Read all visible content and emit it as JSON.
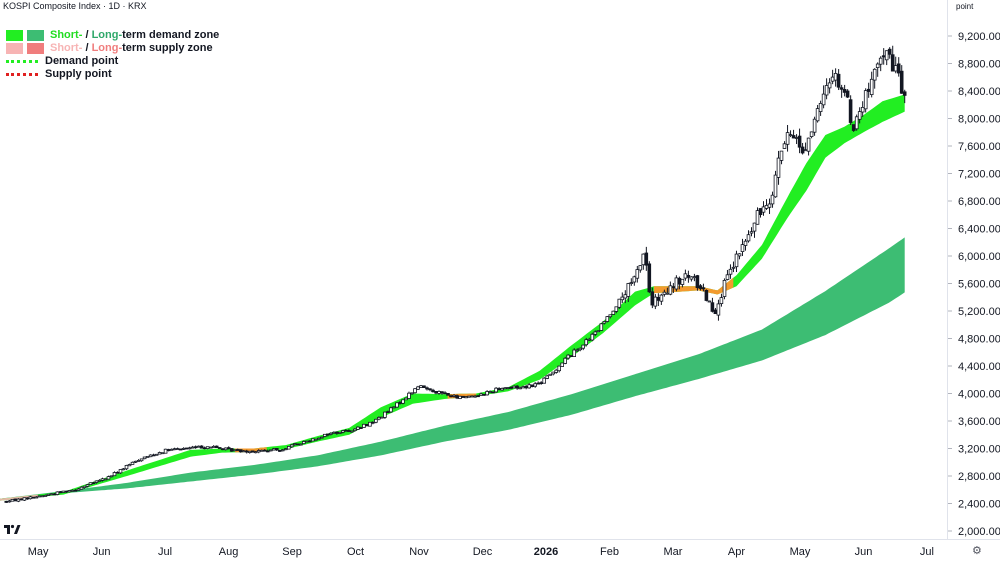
{
  "header": {
    "title": "KOSPI Composite Index · 1D · KRX",
    "unit": "point"
  },
  "legend": {
    "demand_zone": {
      "short": "Short-",
      "sep": " / ",
      "long": "Long-",
      "rest": "term demand zone"
    },
    "supply_zone": {
      "short": "Short-",
      "sep": " / ",
      "long": "Long-",
      "rest": "term supply zone"
    },
    "demand_point": "Demand point",
    "supply_point": "Supply point"
  },
  "colors": {
    "short_demand": "#22ee22",
    "long_demand": "#3dbd73",
    "short_supply": "#f7b4b4",
    "long_supply": "#f07d7d",
    "supply_segment": "#f39a2e",
    "candle_up": "#ffffff",
    "candle_down": "#131722",
    "axis_text": "#131722"
  },
  "icons": {
    "logo": "tradingview-logo-icon",
    "settings": "settings-icon"
  },
  "chart_data": {
    "type": "candlestick",
    "title": "KOSPI Composite Index · 1D · KRX",
    "ylabel": "point",
    "ylim": [
      1900,
      9500
    ],
    "yticks": [
      2000,
      2400,
      2800,
      3200,
      3600,
      4000,
      4400,
      4800,
      5200,
      5600,
      6000,
      6400,
      6800,
      7200,
      7600,
      8000,
      8400,
      8800,
      9200
    ],
    "ytick_labels": [
      "2,000.00",
      "2,400.00",
      "2,800.00",
      "3,200.00",
      "3,600.00",
      "4,000.00",
      "4,400.00",
      "4,800.00",
      "5,200.00",
      "5,600.00",
      "6,000.00",
      "6,400.00",
      "6,800.00",
      "7,200.00",
      "7,600.00",
      "8,000.00",
      "8,400.00",
      "8,800.00",
      "9,200.00"
    ],
    "xticks": [
      {
        "t": 0.6,
        "label": "May"
      },
      {
        "t": 1.6,
        "label": "Jun"
      },
      {
        "t": 2.6,
        "label": "Jul"
      },
      {
        "t": 3.6,
        "label": "Aug"
      },
      {
        "t": 4.6,
        "label": "Sep"
      },
      {
        "t": 5.6,
        "label": "Oct"
      },
      {
        "t": 6.6,
        "label": "Nov"
      },
      {
        "t": 7.6,
        "label": "Dec"
      },
      {
        "t": 8.6,
        "label": "2026"
      },
      {
        "t": 9.6,
        "label": "Feb"
      },
      {
        "t": 10.6,
        "label": "Mar"
      },
      {
        "t": 11.6,
        "label": "Apr"
      },
      {
        "t": 12.6,
        "label": "May"
      },
      {
        "t": 13.6,
        "label": "Jun"
      },
      {
        "t": 14.6,
        "label": "Jul"
      }
    ],
    "x_unit": "months from start of chart (May = 0.6)",
    "price_anchors": [
      [
        0.1,
        2430
      ],
      [
        0.7,
        2520
      ],
      [
        1.2,
        2610
      ],
      [
        1.7,
        2780
      ],
      [
        2.2,
        3050
      ],
      [
        2.6,
        3170
      ],
      [
        3.0,
        3210
      ],
      [
        3.3,
        3230
      ],
      [
        3.6,
        3180
      ],
      [
        4.0,
        3160
      ],
      [
        4.4,
        3180
      ],
      [
        4.8,
        3300
      ],
      [
        5.2,
        3420
      ],
      [
        5.6,
        3480
      ],
      [
        5.9,
        3600
      ],
      [
        6.2,
        3800
      ],
      [
        6.6,
        4110
      ],
      [
        6.9,
        4020
      ],
      [
        7.2,
        3940
      ],
      [
        7.6,
        3990
      ],
      [
        7.9,
        4090
      ],
      [
        8.2,
        4090
      ],
      [
        8.5,
        4150
      ],
      [
        8.7,
        4300
      ],
      [
        8.9,
        4500
      ],
      [
        9.1,
        4650
      ],
      [
        9.4,
        4900
      ],
      [
        9.6,
        5150
      ],
      [
        9.8,
        5400
      ],
      [
        10.0,
        5650
      ],
      [
        10.15,
        6100
      ],
      [
        10.25,
        5300
      ],
      [
        10.45,
        5400
      ],
      [
        10.65,
        5600
      ],
      [
        10.85,
        5700
      ],
      [
        11.05,
        5550
      ],
      [
        11.25,
        5200
      ],
      [
        11.45,
        5650
      ],
      [
        11.65,
        6050
      ],
      [
        11.85,
        6400
      ],
      [
        12.0,
        6700
      ],
      [
        12.15,
        6900
      ],
      [
        12.3,
        7550
      ],
      [
        12.5,
        7800
      ],
      [
        12.65,
        7500
      ],
      [
        12.8,
        7900
      ],
      [
        12.95,
        8200
      ],
      [
        13.1,
        8700
      ],
      [
        13.3,
        8400
      ],
      [
        13.45,
        7850
      ],
      [
        13.6,
        8250
      ],
      [
        13.8,
        8650
      ],
      [
        13.95,
        9100
      ],
      [
        14.05,
        8700
      ],
      [
        14.15,
        8700
      ],
      [
        14.25,
        8300
      ]
    ],
    "short_demand_zone": [
      [
        0.0,
        2440,
        2470
      ],
      [
        1.0,
        2530,
        2570
      ],
      [
        2.0,
        2800,
        2880
      ],
      [
        3.0,
        3080,
        3180
      ],
      [
        3.5,
        3140,
        3200
      ],
      [
        4.0,
        3150,
        3200
      ],
      [
        4.5,
        3190,
        3250
      ],
      [
        5.0,
        3300,
        3380
      ],
      [
        5.5,
        3400,
        3500
      ],
      [
        6.0,
        3650,
        3800
      ],
      [
        6.5,
        3850,
        4000
      ],
      [
        7.0,
        3920,
        3990
      ],
      [
        7.5,
        3960,
        4000
      ],
      [
        8.0,
        4030,
        4090
      ],
      [
        8.5,
        4200,
        4330
      ],
      [
        9.0,
        4530,
        4700
      ],
      [
        9.5,
        4880,
        5050
      ],
      [
        10.0,
        5280,
        5480
      ],
      [
        10.3,
        5460,
        5560
      ],
      [
        10.7,
        5480,
        5560
      ],
      [
        11.0,
        5500,
        5560
      ],
      [
        11.3,
        5440,
        5500
      ],
      [
        11.6,
        5560,
        5720
      ],
      [
        12.0,
        5960,
        6160
      ],
      [
        12.4,
        6550,
        6850
      ],
      [
        12.7,
        6950,
        7350
      ],
      [
        13.0,
        7430,
        7760
      ],
      [
        13.3,
        7640,
        7880
      ],
      [
        13.6,
        7800,
        8050
      ],
      [
        13.9,
        7950,
        8250
      ],
      [
        14.25,
        8100,
        8350
      ]
    ],
    "long_demand_zone": [
      [
        0.0,
        2450,
        2470
      ],
      [
        1.0,
        2550,
        2580
      ],
      [
        2.0,
        2620,
        2700
      ],
      [
        3.0,
        2720,
        2850
      ],
      [
        4.0,
        2820,
        2960
      ],
      [
        5.0,
        2940,
        3100
      ],
      [
        6.0,
        3100,
        3300
      ],
      [
        7.0,
        3300,
        3530
      ],
      [
        8.0,
        3470,
        3730
      ],
      [
        9.0,
        3690,
        3990
      ],
      [
        10.0,
        3960,
        4280
      ],
      [
        11.0,
        4210,
        4570
      ],
      [
        12.0,
        4480,
        4930
      ],
      [
        13.0,
        4850,
        5490
      ],
      [
        14.0,
        5320,
        6110
      ],
      [
        14.25,
        5470,
        6270
      ]
    ],
    "supply_zone_segments": [
      [
        0.0,
        0.6
      ],
      [
        3.7,
        4.2
      ],
      [
        7.05,
        7.5
      ],
      [
        10.3,
        11.55
      ]
    ],
    "demand_points": [],
    "supply_points": [],
    "approx_range": {
      "low": 2400,
      "high": 9300,
      "last_close": 8300
    }
  }
}
